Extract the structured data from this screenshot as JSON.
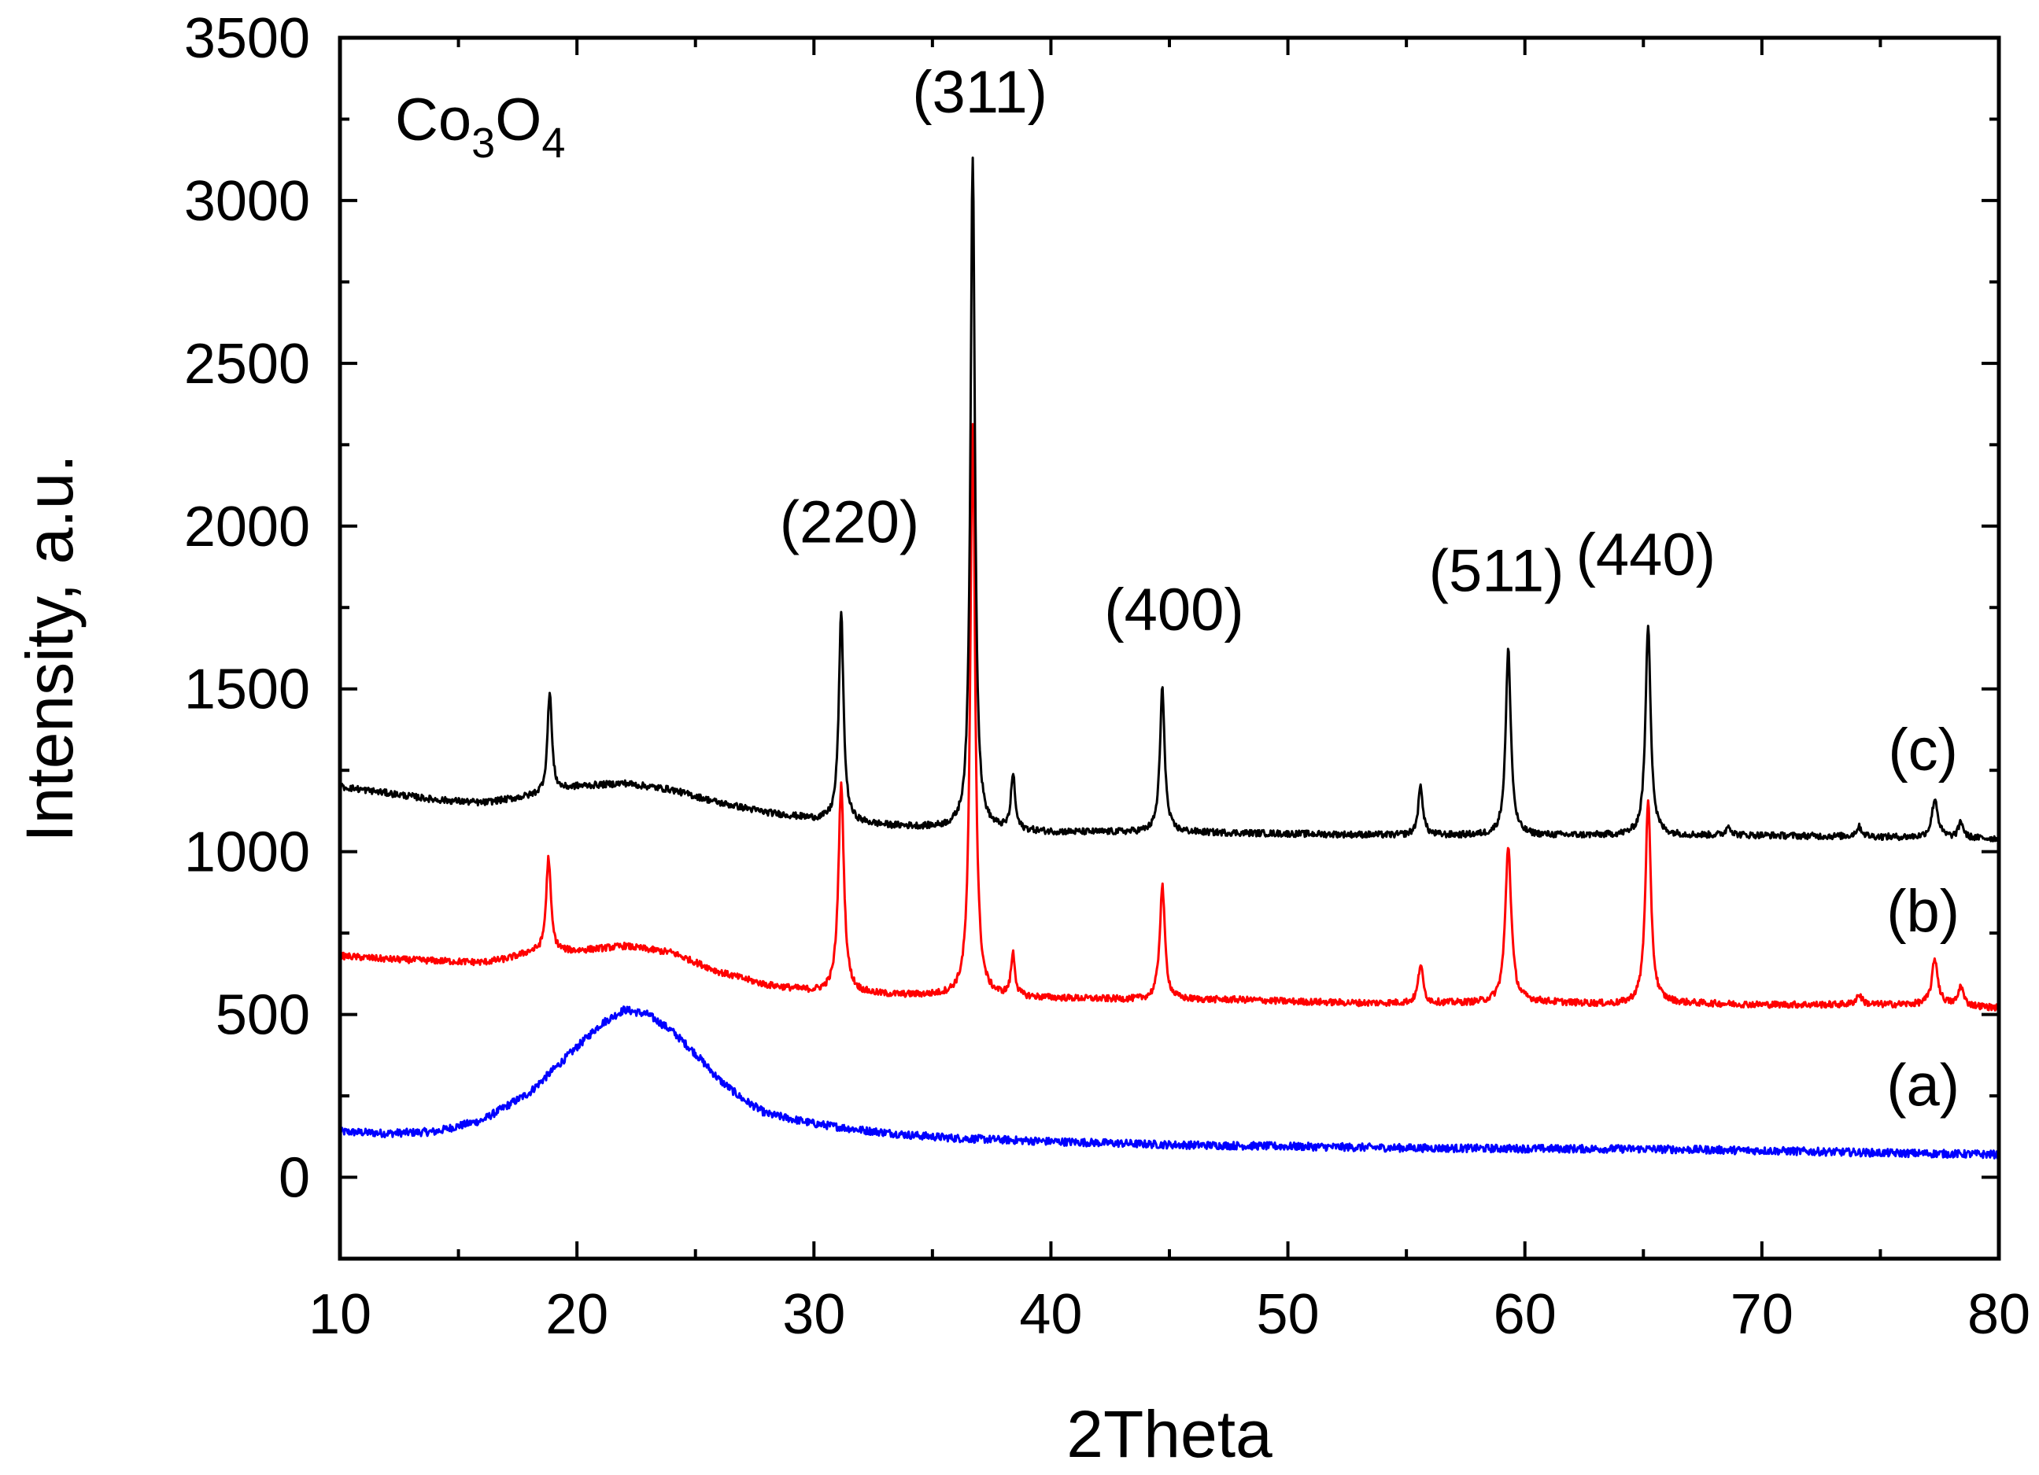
{
  "chart_data": {
    "type": "line",
    "title": "Co3O4",
    "title_parts": {
      "el1": "Co",
      "sub1": "3",
      "el2": "O",
      "sub2": "4"
    },
    "xlabel": "2Theta",
    "ylabel": "Intensity, a.u.",
    "xlim": [
      10,
      80
    ],
    "ylim": [
      -250,
      3500
    ],
    "grid": false,
    "xticks": [
      10,
      20,
      30,
      40,
      50,
      60,
      70,
      80
    ],
    "yticks": [
      0,
      500,
      1000,
      1500,
      2000,
      2500,
      3000,
      3500
    ],
    "xtick_labels": [
      "10",
      "20",
      "30",
      "40",
      "50",
      "60",
      "70",
      "80"
    ],
    "ytick_labels": [
      "0",
      "500",
      "1000",
      "1500",
      "2000",
      "2500",
      "3000",
      "3500"
    ],
    "series": [
      {
        "name": "(a)",
        "color": "#0000ff",
        "noise": 12,
        "points": [
          [
            10,
            140
          ],
          [
            12,
            135
          ],
          [
            14,
            140
          ],
          [
            16,
            175
          ],
          [
            18,
            260
          ],
          [
            20,
            400
          ],
          [
            21,
            470
          ],
          [
            22,
            515
          ],
          [
            23,
            500
          ],
          [
            24,
            450
          ],
          [
            25,
            380
          ],
          [
            26,
            300
          ],
          [
            27,
            240
          ],
          [
            28,
            195
          ],
          [
            30,
            165
          ],
          [
            32,
            145
          ],
          [
            34,
            130
          ],
          [
            36,
            120
          ],
          [
            40,
            110
          ],
          [
            45,
            100
          ],
          [
            50,
            95
          ],
          [
            55,
            90
          ],
          [
            60,
            88
          ],
          [
            65,
            87
          ],
          [
            70,
            82
          ],
          [
            75,
            75
          ],
          [
            80,
            70
          ]
        ]
      },
      {
        "name": "(b)",
        "color": "#ff0000",
        "noise": 10,
        "points": [
          [
            10,
            680
          ],
          [
            12,
            670
          ],
          [
            14,
            665
          ],
          [
            16,
            660
          ],
          [
            17,
            670
          ],
          [
            18,
            690
          ],
          [
            20,
            695
          ],
          [
            22,
            710
          ],
          [
            24,
            690
          ],
          [
            26,
            630
          ],
          [
            28,
            590
          ],
          [
            30,
            570
          ],
          [
            33,
            560
          ],
          [
            36,
            555
          ],
          [
            40,
            550
          ],
          [
            44,
            545
          ],
          [
            48,
            545
          ],
          [
            50,
            540
          ],
          [
            53,
            535
          ],
          [
            55,
            535
          ],
          [
            58,
            535
          ],
          [
            60,
            540
          ],
          [
            62,
            535
          ],
          [
            64,
            530
          ],
          [
            66,
            535
          ],
          [
            70,
            530
          ],
          [
            75,
            530
          ],
          [
            78,
            530
          ],
          [
            80,
            520
          ]
        ],
        "peaks": [
          [
            18.8,
            290,
            0.12
          ],
          [
            31.15,
            640,
            0.14
          ],
          [
            36.7,
            1760,
            0.12
          ],
          [
            38.4,
            130,
            0.1
          ],
          [
            44.7,
            350,
            0.13
          ],
          [
            55.6,
            120,
            0.12
          ],
          [
            59.3,
            480,
            0.15
          ],
          [
            65.2,
            620,
            0.14
          ],
          [
            74.1,
            30,
            0.15
          ],
          [
            77.3,
            140,
            0.15
          ],
          [
            78.4,
            60,
            0.12
          ]
        ]
      },
      {
        "name": "(c)",
        "color": "#000000",
        "noise": 10,
        "points": [
          [
            10,
            1200
          ],
          [
            12,
            1180
          ],
          [
            14,
            1160
          ],
          [
            16,
            1150
          ],
          [
            18,
            1170
          ],
          [
            20,
            1200
          ],
          [
            22,
            1210
          ],
          [
            24,
            1190
          ],
          [
            26,
            1150
          ],
          [
            28,
            1120
          ],
          [
            30,
            1100
          ],
          [
            33,
            1080
          ],
          [
            36,
            1070
          ],
          [
            40,
            1060
          ],
          [
            45,
            1060
          ],
          [
            50,
            1055
          ],
          [
            55,
            1050
          ],
          [
            60,
            1050
          ],
          [
            65,
            1050
          ],
          [
            70,
            1050
          ],
          [
            75,
            1045
          ],
          [
            80,
            1040
          ]
        ],
        "peaks": [
          [
            18.85,
            310,
            0.11
          ],
          [
            31.15,
            640,
            0.12
          ],
          [
            36.7,
            2070,
            0.11
          ],
          [
            38.4,
            170,
            0.1
          ],
          [
            44.7,
            440,
            0.12
          ],
          [
            55.6,
            150,
            0.12
          ],
          [
            59.3,
            570,
            0.13
          ],
          [
            65.2,
            650,
            0.13
          ],
          [
            68.6,
            30,
            0.12
          ],
          [
            74.1,
            30,
            0.15
          ],
          [
            77.3,
            120,
            0.15
          ],
          [
            78.4,
            50,
            0.12
          ]
        ]
      }
    ],
    "peak_annotations": [
      {
        "label": "(220)",
        "x": 31.5,
        "y": 1950
      },
      {
        "label": "(311)",
        "x": 37.0,
        "y": 3270
      },
      {
        "label": "(400)",
        "x": 45.2,
        "y": 1680
      },
      {
        "label": "(511)",
        "x": 58.8,
        "y": 1800
      },
      {
        "label": "(440)",
        "x": 65.1,
        "y": 1850
      }
    ],
    "series_labels": [
      {
        "label": "(c)",
        "x": 76.8,
        "y": 1250
      },
      {
        "label": "(b)",
        "x": 76.8,
        "y": 755
      },
      {
        "label": "(a)",
        "x": 76.8,
        "y": 220
      }
    ]
  }
}
